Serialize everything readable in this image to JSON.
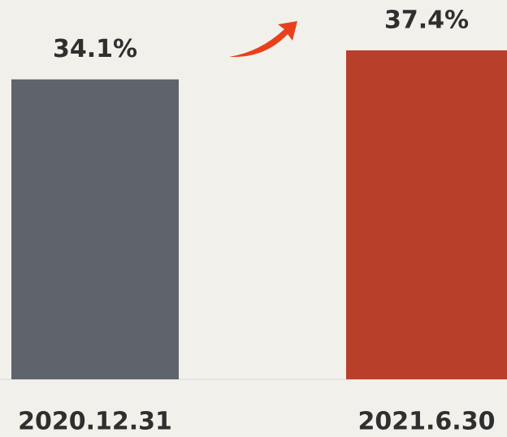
{
  "chart_data": {
    "type": "bar",
    "categories": [
      "2020.12.31",
      "2021.6.30"
    ],
    "values": [
      34.1,
      37.4
    ],
    "value_labels": [
      "34.1%",
      "37.4%"
    ],
    "colors": [
      "#5f636b",
      "#b8402b"
    ]
  }
}
